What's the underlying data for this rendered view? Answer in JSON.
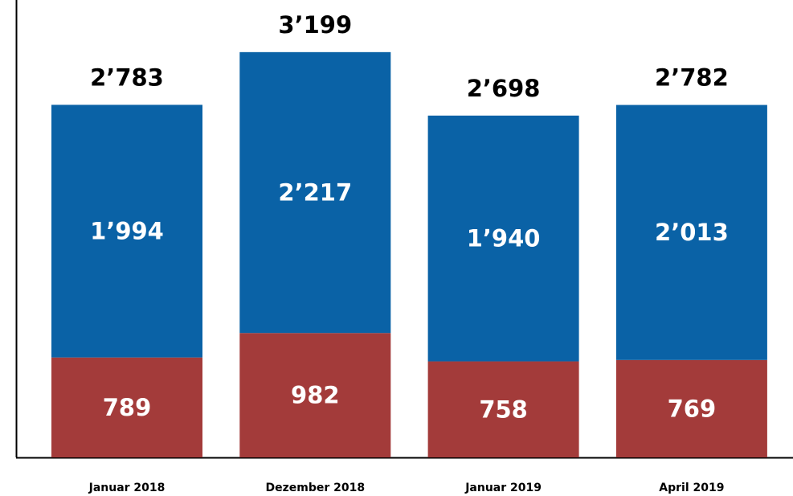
{
  "chart_data": {
    "type": "bar",
    "stacked": true,
    "title": "",
    "xlabel": "",
    "ylabel": "",
    "ylim": [
      0,
      3400
    ],
    "grid": false,
    "legend": "none",
    "categories": [
      "Januar 2018",
      "Dezember 2018",
      "Januar 2019",
      "April 2019"
    ],
    "series": [
      {
        "color": "#a33b3a",
        "values": [
          789,
          982,
          758,
          769
        ],
        "value_labels": [
          "789",
          "982",
          "758",
          "769"
        ]
      },
      {
        "color": "#0a62a6",
        "values": [
          1994,
          2217,
          1940,
          2013
        ],
        "value_labels": [
          "1’994",
          "2’217",
          "1’940",
          "2’013"
        ]
      }
    ],
    "totals": [
      2783,
      3199,
      2698,
      2782
    ],
    "total_labels": [
      "2’783",
      "3’199",
      "2’698",
      "2’782"
    ]
  }
}
